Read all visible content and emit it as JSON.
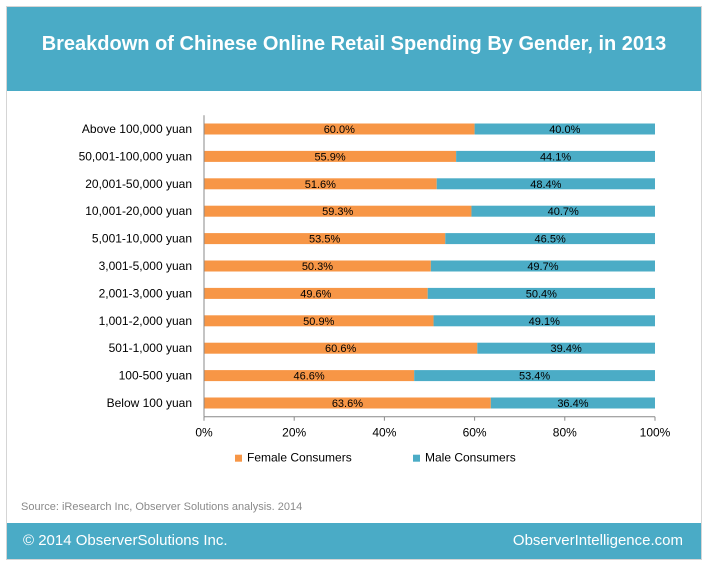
{
  "header": {
    "title": "Breakdown of Chinese Online Retail Spending By Gender, in 2013"
  },
  "footer": {
    "source": "Source:  iResearch Inc, Observer Solutions analysis. 2014",
    "copyright": "© 2014 ObserverSolutions Inc.",
    "site": "ObserverIntelligence.com"
  },
  "chart_data": {
    "type": "bar",
    "orientation": "horizontal",
    "stacked": true,
    "title": "Breakdown of Chinese Online Retail Spending By Gender, in 2013",
    "categories": [
      "Above 100,000 yuan",
      "50,001-100,000 yuan",
      "20,001-50,000 yuan",
      "10,001-20,000 yuan",
      "5,001-10,000 yuan",
      "3,001-5,000 yuan",
      "2,001-3,000 yuan",
      "1,001-2,000 yuan",
      "501-1,000 yuan",
      "100-500 yuan",
      "Below 100 yuan"
    ],
    "series": [
      {
        "name": "Female Consumers",
        "color": "#f79646",
        "values": [
          60.0,
          55.9,
          51.6,
          59.3,
          53.5,
          50.3,
          49.6,
          50.9,
          60.6,
          46.6,
          63.6
        ],
        "labels": [
          "60.0%",
          "55.9%",
          "51.6%",
          "59.3%",
          "53.5%",
          "50.3%",
          "49.6%",
          "50.9%",
          "60.6%",
          "46.6%",
          "63.6%"
        ]
      },
      {
        "name": "Male Consumers",
        "color": "#4bacc6",
        "values": [
          40.0,
          44.1,
          48.4,
          40.7,
          46.5,
          49.7,
          50.4,
          49.1,
          39.4,
          53.4,
          36.4
        ],
        "labels": [
          "40.0%",
          "44.1%",
          "48.4%",
          "40.7%",
          "46.5%",
          "49.7%",
          "50.4%",
          "49.1%",
          "39.4%",
          "53.4%",
          "36.4%"
        ]
      }
    ],
    "xlim": [
      0,
      100
    ],
    "xticks": [
      "0%",
      "20%",
      "40%",
      "60%",
      "80%",
      "100%"
    ],
    "legend": "bottom",
    "grid": false
  }
}
